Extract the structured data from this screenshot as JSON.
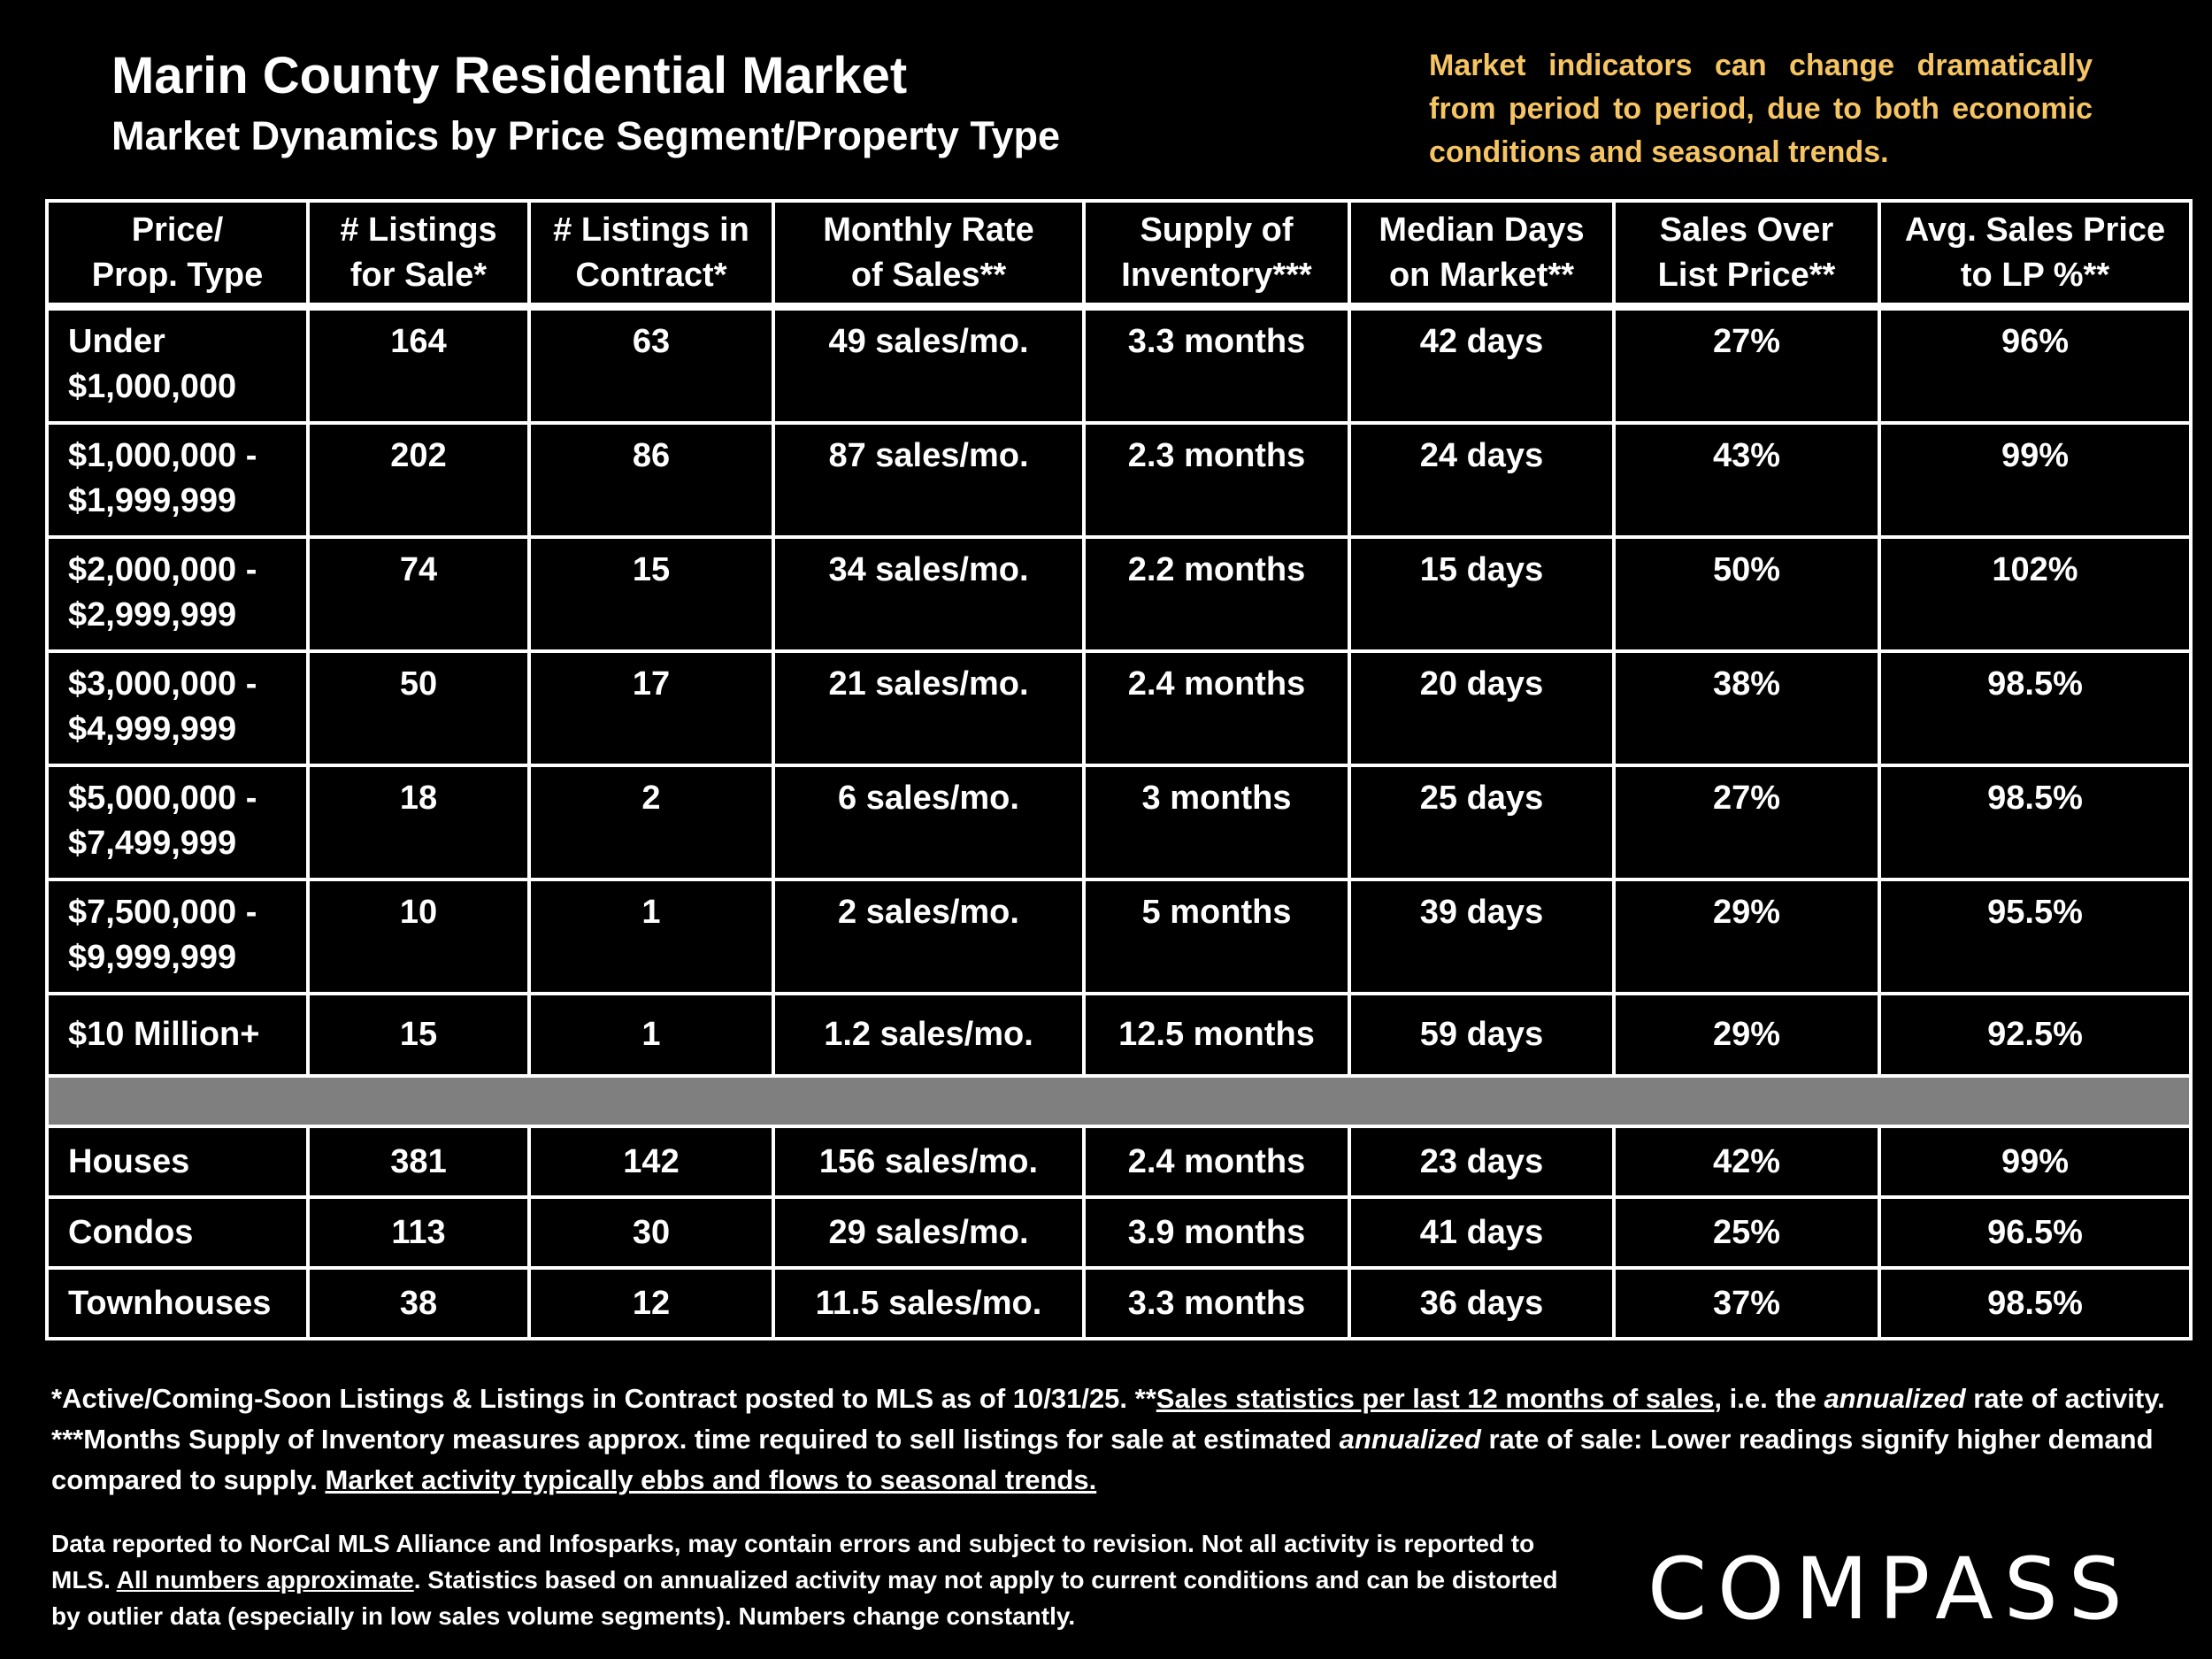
{
  "header": {
    "title": "Marin County Residential Market",
    "subtitle": "Market Dynamics by Price Segment/Property Type",
    "note": "Market indicators can change dramatically from period to period, due to both economic conditions and seasonal trends."
  },
  "table": {
    "columns": [
      "Price/\nProp. Type",
      "# Listings\nfor Sale*",
      "# Listings in\nContract*",
      "Monthly Rate\nof Sales**",
      "Supply of\nInventory***",
      "Median Days\non Market**",
      "Sales Over\nList Price**",
      "Avg. Sales Price\nto LP %**"
    ],
    "rows": [
      [
        "Under\n$1,000,000",
        "164",
        "63",
        "49 sales/mo.",
        "3.3 months",
        "42 days",
        "27%",
        "96%"
      ],
      [
        "$1,000,000 -\n$1,999,999",
        "202",
        "86",
        "87 sales/mo.",
        "2.3 months",
        "24 days",
        "43%",
        "99%"
      ],
      [
        "$2,000,000 -\n$2,999,999",
        "74",
        "15",
        "34 sales/mo.",
        "2.2 months",
        "15 days",
        "50%",
        "102%"
      ],
      [
        "$3,000,000 -\n$4,999,999",
        "50",
        "17",
        "21 sales/mo.",
        "2.4 months",
        "20 days",
        "38%",
        "98.5%"
      ],
      [
        "$5,000,000 -\n$7,499,999",
        "18",
        "2",
        "6 sales/mo.",
        "3 months",
        "25 days",
        "27%",
        "98.5%"
      ],
      [
        "$7,500,000 -\n$9,999,999",
        "10",
        "1",
        "2 sales/mo.",
        "5 months",
        "39 days",
        "29%",
        "95.5%"
      ],
      [
        "$10 Million+",
        "15",
        "1",
        "1.2 sales/mo.",
        "12.5 months",
        "59 days",
        "29%",
        "92.5%"
      ]
    ],
    "type_rows": [
      [
        "Houses",
        "381",
        "142",
        "156 sales/mo.",
        "2.4 months",
        "23 days",
        "42%",
        "99%"
      ],
      [
        "Condos",
        "113",
        "30",
        "29 sales/mo.",
        "3.9 months",
        "41 days",
        "25%",
        "96.5%"
      ],
      [
        "Townhouses",
        "38",
        "12",
        "11.5 sales/mo.",
        "3.3 months",
        "36 days",
        "37%",
        "98.5%"
      ]
    ]
  },
  "footnotes": {
    "definitions": [
      "*Active/Coming-Soon Listings & Listings in Contract posted to MLS as of 10/31/25. **",
      "Sales statistics per last 12 months of sales",
      ", i.e. the ",
      "annualized",
      " rate of activity.  ***Months Supply of Inventory measures approx. time required to sell listings for sale at estimated ",
      "annualized",
      " rate of sale:  Lower readings signify higher demand compared to supply. ",
      "Market activity typically ebbs and flows to seasonal trends."
    ],
    "disclaimer": [
      "Data reported to NorCal MLS Alliance and Infosparks, may contain errors and subject to revision.  Not all activity is reported to MLS. ",
      "All numbers approximate",
      ". Statistics based on annualized activity may not apply to current conditions and can be distorted by outlier data (especially in low sales volume segments). Numbers change constantly."
    ]
  },
  "logo": "COMPASS"
}
